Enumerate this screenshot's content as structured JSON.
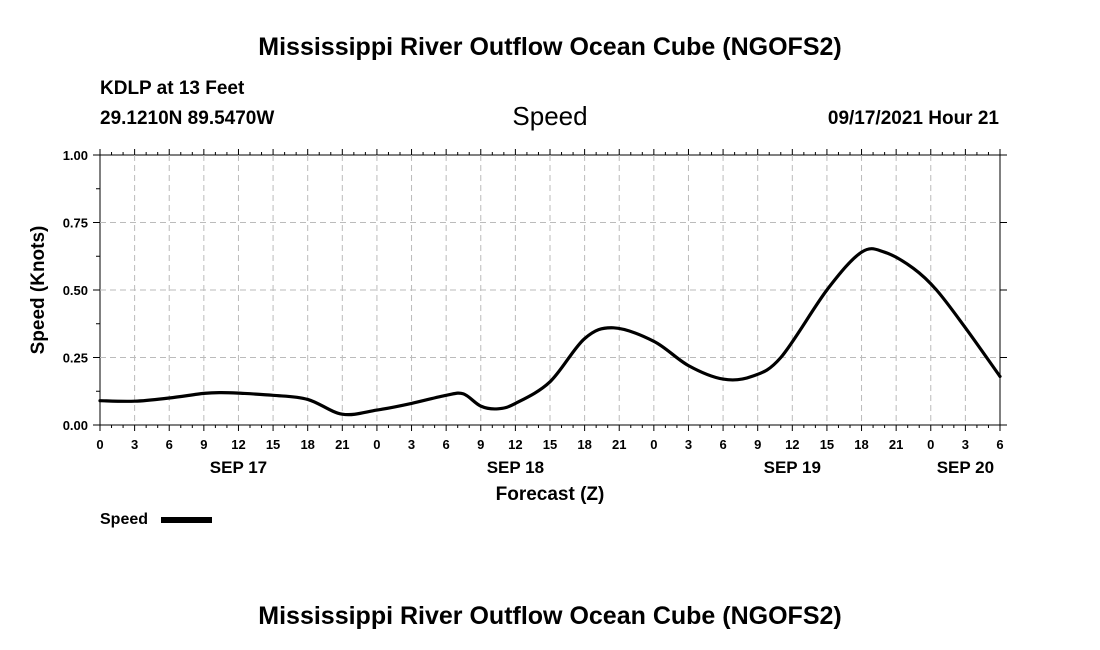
{
  "header": {
    "title_top": "Mississippi River Outflow Ocean Cube (NGOFS2)",
    "station": "KDLP at 13 Feet",
    "coordinates": "29.1210N  89.5470W",
    "variable": "Speed",
    "timestamp": "09/17/2021 Hour 21",
    "title_bottom": "Mississippi River Outflow Ocean Cube (NGOFS2)"
  },
  "legend": {
    "label": "Speed"
  },
  "colors": {
    "line": "#000000",
    "grid": "#bbbbbb",
    "background": "#ffffff"
  },
  "chart_data": {
    "type": "line",
    "title": "Speed",
    "xlabel": "Forecast (Z)",
    "ylabel": "Speed (Knots)",
    "xlim": [
      0,
      78
    ],
    "ylim": [
      0,
      1
    ],
    "grid": true,
    "x_ticks": [
      0,
      3,
      6,
      9,
      12,
      15,
      18,
      21,
      24,
      27,
      30,
      33,
      36,
      39,
      42,
      45,
      48,
      51,
      54,
      57,
      60,
      63,
      66,
      69,
      72,
      75,
      78
    ],
    "x_tick_labels": [
      "0",
      "3",
      "6",
      "9",
      "12",
      "15",
      "18",
      "21",
      "0",
      "3",
      "6",
      "9",
      "12",
      "15",
      "18",
      "21",
      "0",
      "3",
      "6",
      "9",
      "12",
      "15",
      "18",
      "21",
      "0",
      "3",
      "6"
    ],
    "y_ticks": [
      0,
      0.25,
      0.5,
      0.75,
      1.0
    ],
    "y_tick_labels": [
      "0.00",
      "0.25",
      "0.50",
      "0.75",
      "1.00"
    ],
    "date_labels": [
      {
        "label": "SEP 17",
        "x": 12
      },
      {
        "label": "SEP 18",
        "x": 36
      },
      {
        "label": "SEP 19",
        "x": 60
      },
      {
        "label": "SEP 20",
        "x": 75
      }
    ],
    "series": [
      {
        "name": "Speed",
        "x": [
          0,
          3,
          6,
          9,
          10.5,
          12,
          15,
          18,
          21,
          24,
          27,
          30,
          31.5,
          33,
          34.5,
          36,
          39,
          42,
          44.5,
          48,
          51,
          54,
          56.5,
          59,
          63,
          66,
          68,
          70.5,
          72.5,
          75,
          78
        ],
        "y": [
          0.09,
          0.088,
          0.1,
          0.117,
          0.12,
          0.118,
          0.11,
          0.095,
          0.04,
          0.055,
          0.08,
          0.11,
          0.115,
          0.07,
          0.06,
          0.08,
          0.16,
          0.32,
          0.36,
          0.31,
          0.22,
          0.17,
          0.18,
          0.25,
          0.5,
          0.64,
          0.64,
          0.58,
          0.5,
          0.36,
          0.18
        ]
      }
    ]
  }
}
